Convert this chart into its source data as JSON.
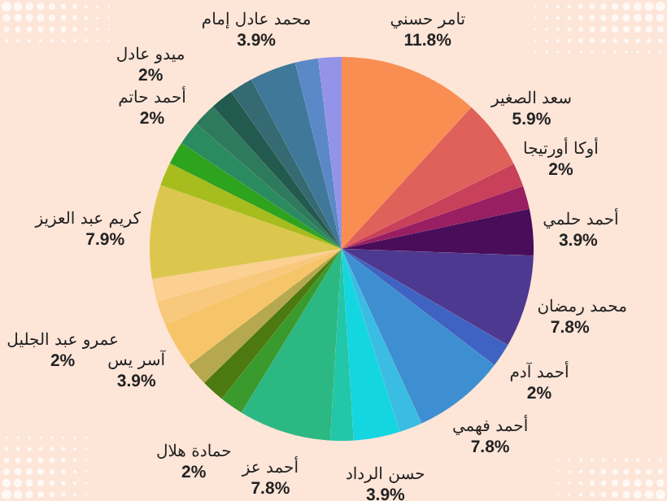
{
  "chart_data": {
    "type": "pie",
    "categories": [
      "تامر حسني",
      "سعد الصغير",
      "أوكا أورتيجا",
      null,
      "أحمد حلمي",
      "محمد رمضان",
      "أحمد آدم",
      "أحمد فهمي",
      null,
      "حسن الرداد",
      null,
      "أحمد عز",
      "حمادة هلال",
      null,
      null,
      "آسر يس",
      "عمرو عبد الجليل",
      null,
      "كريم عبد العزيز",
      null,
      null,
      "أحمد حاتم",
      "ميدو عادل",
      null,
      null,
      "محمد عادل إمام",
      null,
      null
    ],
    "values": [
      11.8,
      5.9,
      2,
      1.95,
      3.9,
      7.8,
      2,
      7.8,
      1.95,
      3.9,
      1.95,
      7.8,
      2,
      1.95,
      1.95,
      3.9,
      2,
      1.95,
      7.9,
      1.95,
      1.95,
      2,
      2,
      1.95,
      1.95,
      3.9,
      1.95,
      1.95
    ],
    "value_labels": [
      "11.8%",
      "5.9%",
      "2%",
      null,
      "3.9%",
      "7.8%",
      "2%",
      "7.8%",
      null,
      "3.9%",
      null,
      "7.8%",
      "2%",
      null,
      null,
      "3.9%",
      "2%",
      null,
      "7.9%",
      null,
      null,
      "2%",
      "2%",
      null,
      null,
      "3.9%",
      null,
      null
    ],
    "colors": [
      "#f98e52",
      "#e0605a",
      "#c8405a",
      "#9a1e62",
      "#4a0d5a",
      "#4e3990",
      "#3f63c2",
      "#3e8fd1",
      "#3bbde3",
      "#14d6e0",
      "#21c7a8",
      "#2cb882",
      "#3a9a2e",
      "#4d7a10",
      "#b5a84e",
      "#f6c56a",
      "#f8c87c",
      "#fbd090",
      "#dcc74e",
      "#a7bd1e",
      "#2ea31e",
      "#2a8a60",
      "#2e7a5d",
      "#235a4f",
      "#356a72",
      "#3f7898",
      "#5b89c8",
      "#9393ea"
    ]
  }
}
